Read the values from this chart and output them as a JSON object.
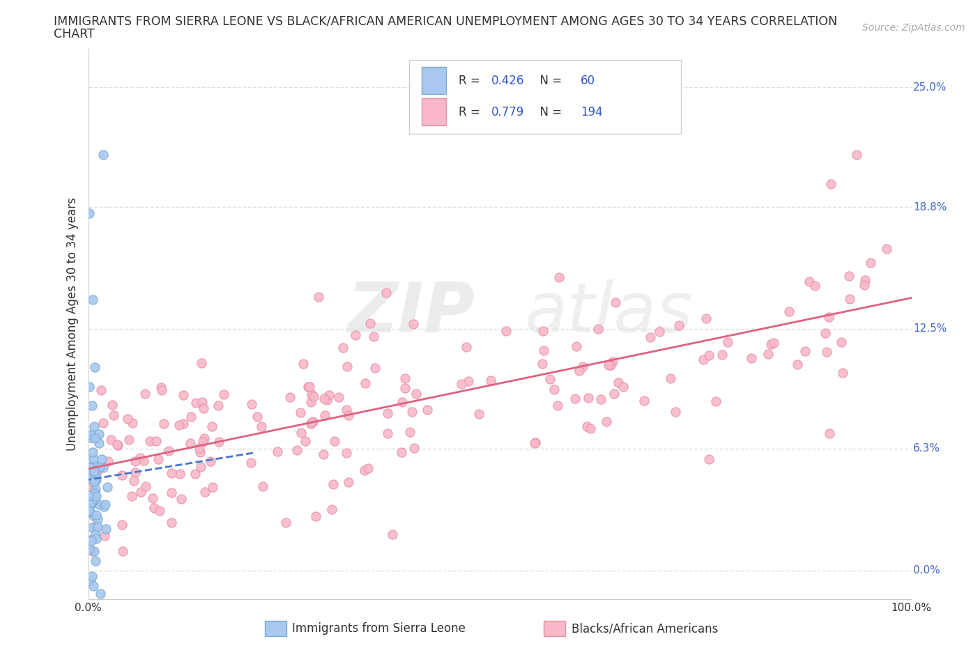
{
  "title_line1": "IMMIGRANTS FROM SIERRA LEONE VS BLACK/AFRICAN AMERICAN UNEMPLOYMENT AMONG AGES 30 TO 34 YEARS CORRELATION",
  "title_line2": "CHART",
  "source": "Source: ZipAtlas.com",
  "ylabel": "Unemployment Among Ages 30 to 34 years",
  "xlim": [
    0.0,
    1.0
  ],
  "ylim": [
    -0.015,
    0.27
  ],
  "ytick_vals": [
    0.0,
    0.063,
    0.125,
    0.188,
    0.25
  ],
  "ytick_labels_right": [
    "0.0%",
    "6.3%",
    "12.5%",
    "18.8%",
    "25.0%"
  ],
  "xtick_vals": [
    0.0,
    1.0
  ],
  "xtick_labels": [
    "0.0%",
    "100.0%"
  ],
  "sierra_leone_color": "#a8c8f0",
  "sierra_leone_edge": "#7aaad0",
  "black_aa_color": "#f8b8c8",
  "black_aa_edge": "#e890a8",
  "sierra_leone_R": 0.426,
  "sierra_leone_N": 60,
  "black_aa_R": 0.779,
  "black_aa_N": 194,
  "legend_label_1": "Immigrants from Sierra Leone",
  "legend_label_2": "Blacks/African Americans",
  "watermark_zip": "ZIP",
  "watermark_atlas": "atlas",
  "trendline_sl_color": "#4477cc",
  "trendline_baa_color": "#e06080",
  "accent_color": "#3355cc",
  "background_color": "#ffffff",
  "grid_color": "#e0e0e0",
  "tick_color": "#4466cc",
  "text_color": "#333333"
}
